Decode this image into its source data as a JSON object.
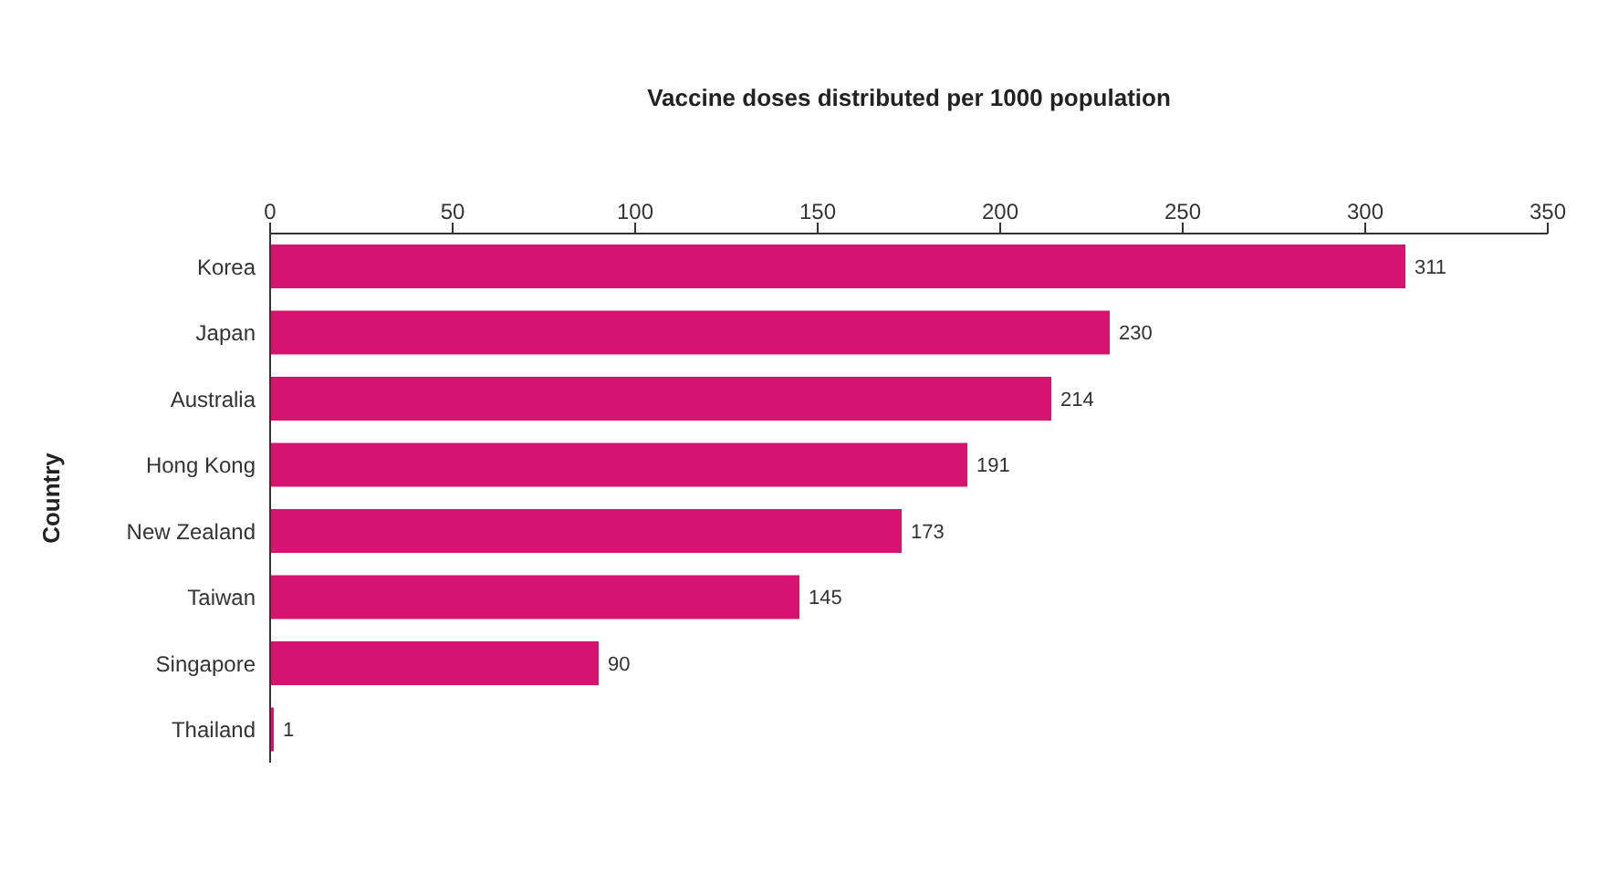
{
  "chart_data": {
    "type": "bar",
    "orientation": "horizontal",
    "xlabel": "Vaccine doses distributed per 1000 population",
    "ylabel": "Country",
    "categories": [
      "Korea",
      "Japan",
      "Australia",
      "Hong Kong",
      "New Zealand",
      "Taiwan",
      "Singapore",
      "Thailand"
    ],
    "values": [
      311,
      230,
      214,
      191,
      173,
      145,
      90,
      1
    ],
    "color": "#d6136e",
    "xlim": [
      0,
      350
    ],
    "xticks": [
      0,
      50,
      100,
      150,
      200,
      250,
      300,
      350
    ],
    "data_labels": true,
    "grid": false,
    "legend": false
  }
}
